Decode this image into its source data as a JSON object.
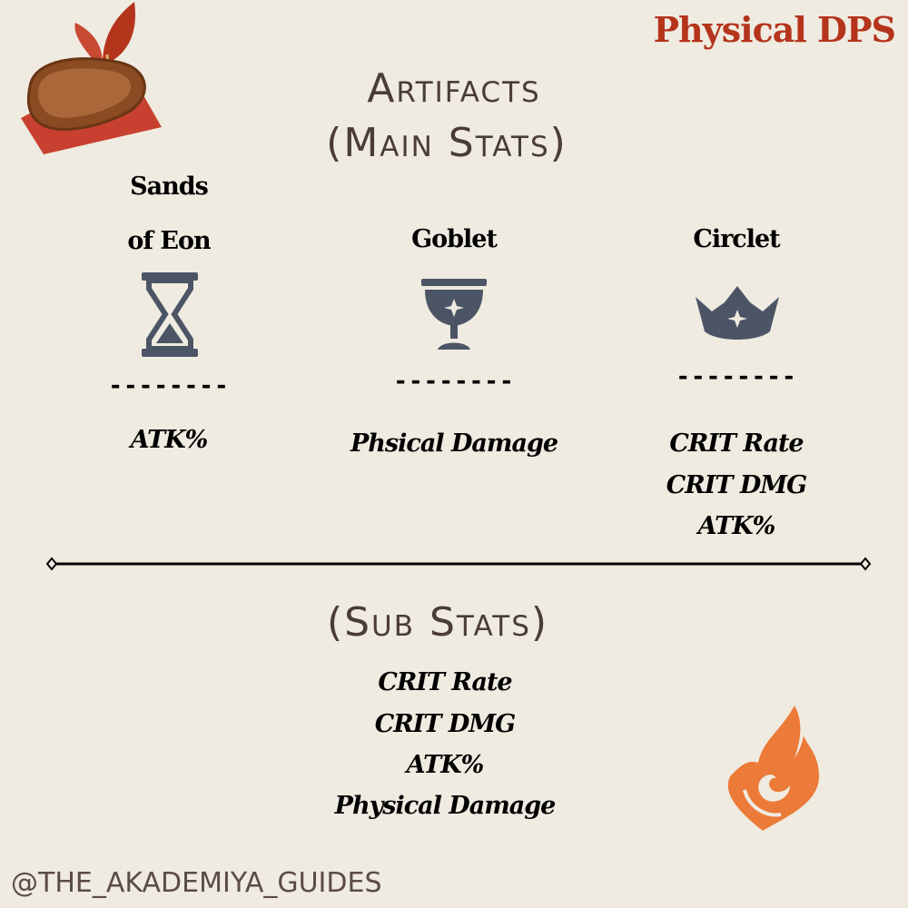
{
  "header": {
    "role": "Physical DPS",
    "title_line1": "Artifacts",
    "title_line2": "(Main Stats)"
  },
  "main_stats": [
    {
      "slot_line1": "Sands",
      "slot_line2": "of Eon",
      "icon": "hourglass-icon",
      "divider": "--------",
      "values": [
        "ATK%"
      ]
    },
    {
      "slot_line1": "Goblet",
      "icon": "goblet-icon",
      "divider": "--------",
      "values": [
        "Phsical Damage"
      ]
    },
    {
      "slot_line1": "Circlet",
      "icon": "crown-icon",
      "divider": "--------",
      "values": [
        "CRIT Rate",
        "CRIT DMG",
        "ATK%"
      ]
    }
  ],
  "sub_stats": {
    "title": "(Sub Stats)",
    "values": [
      "CRIT Rate",
      "CRIT DMG",
      "ATK%",
      "Physical Damage"
    ]
  },
  "footer": {
    "handle": "@THE_AKADEMIYA_GUIDES"
  },
  "colors": {
    "background": "#efebe1",
    "title": "#4a3c36",
    "accent": "#b5341c",
    "icon": "#4b5566",
    "pyro": "#ec7a38"
  }
}
